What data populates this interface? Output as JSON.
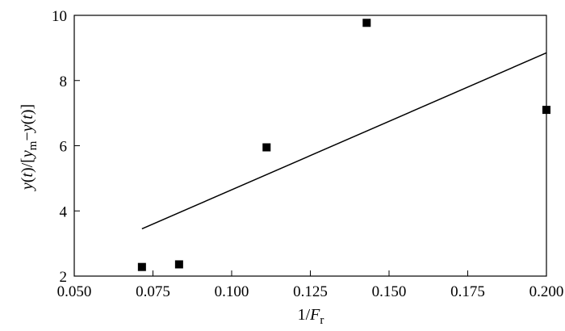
{
  "chart_data": {
    "type": "scatter",
    "title": "",
    "xlabel": {
      "main": "1/",
      "var": "F",
      "sub": "r"
    },
    "ylabel": {
      "part1": "y",
      "part2": "(",
      "part3": "t",
      "part4": ")/[",
      "part5": "y",
      "part6": "m",
      "part7": "−",
      "part8": "y",
      "part9": "(",
      "part10": "t",
      "part11": ")]"
    },
    "xlim": [
      0.05,
      0.2
    ],
    "ylim": [
      2,
      10
    ],
    "xticks": [
      0.05,
      0.075,
      0.1,
      0.125,
      0.15,
      0.175,
      0.2
    ],
    "xtick_labels": [
      "0.050",
      "0.075",
      "0.100",
      "0.125",
      "0.150",
      "0.175",
      "0.200"
    ],
    "yticks": [
      2,
      4,
      6,
      8,
      10
    ],
    "ytick_labels": [
      "2",
      "4",
      "6",
      "8",
      "10"
    ],
    "grid": false,
    "series": [
      {
        "x": [
          0.0715,
          0.0833,
          0.1111,
          0.1429,
          0.2
        ],
        "y": [
          2.28,
          2.36,
          5.95,
          9.77,
          7.1
        ],
        "marker": "square"
      }
    ],
    "fit_line": {
      "x": [
        0.0715,
        0.2
      ],
      "y": [
        3.45,
        8.85
      ]
    },
    "colors": {
      "marker": "#000000",
      "line": "#000000",
      "axes": "#000000"
    }
  }
}
